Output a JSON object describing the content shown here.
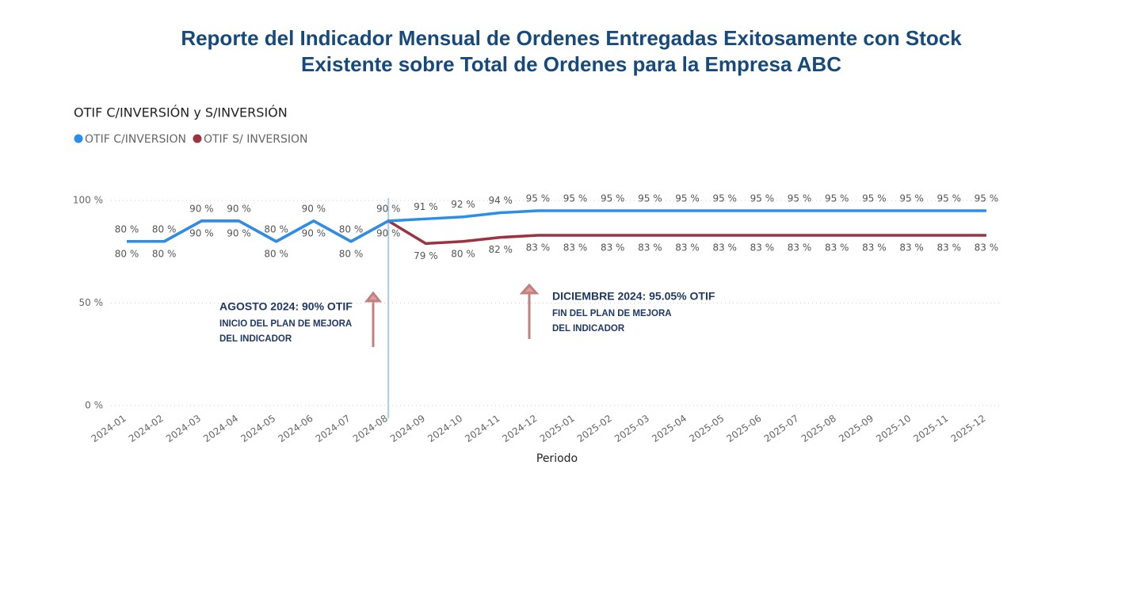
{
  "chart_data": {
    "type": "line",
    "title": [
      "Reporte del Indicador Mensual de Ordenes Entregadas Exitosamente con Stock",
      "Existente sobre Total de Ordenes para la Empresa ABC"
    ],
    "subtitle": "OTIF C/INVERSIÓN y S/INVERSIÓN",
    "x_label": "Periodo",
    "categories": [
      "2024-01",
      "2024-02",
      "2024-03",
      "2024-04",
      "2024-05",
      "2024-06",
      "2024-07",
      "2024-08",
      "2024-09",
      "2024-10",
      "2024-11",
      "2024-12",
      "2025-01",
      "2025-02",
      "2025-03",
      "2025-04",
      "2025-05",
      "2025-06",
      "2025-07",
      "2025-08",
      "2025-09",
      "2025-10",
      "2025-11",
      "2025-12"
    ],
    "series": [
      {
        "name": "OTIF C/INVERSION",
        "color": "#2b8ee8",
        "values": [
          80,
          80,
          90,
          90,
          80,
          90,
          80,
          90,
          91,
          92,
          94,
          95,
          95,
          95,
          95,
          95,
          95,
          95,
          95,
          95,
          95,
          95,
          95,
          95
        ],
        "value_labels": [
          "80 %",
          "80 %",
          "90 %",
          "90 %",
          "80 %",
          "90 %",
          "80 %",
          "90 %",
          "91 %",
          "92 %",
          "94 %",
          "95 %",
          "95 %",
          "95 %",
          "95 %",
          "95 %",
          "95 %",
          "95 %",
          "95 %",
          "95 %",
          "95 %",
          "95 %",
          "95 %",
          "95 %"
        ]
      },
      {
        "name": "OTIF S/ INVERSION",
        "color": "#9b3340",
        "values": [
          80,
          80,
          90,
          90,
          80,
          90,
          80,
          90,
          79,
          80,
          82,
          83,
          83,
          83,
          83,
          83,
          83,
          83,
          83,
          83,
          83,
          83,
          83,
          83
        ],
        "value_labels": [
          "80 %",
          "80 %",
          "90 %",
          "90 %",
          "80 %",
          "90 %",
          "80 %",
          "90 %",
          "79 %",
          "80 %",
          "82 %",
          "83 %",
          "83 %",
          "83 %",
          "83 %",
          "83 %",
          "83 %",
          "83 %",
          "83 %",
          "83 %",
          "83 %",
          "83 %",
          "83 %",
          "83 %"
        ]
      }
    ],
    "ylim": [
      0,
      100
    ],
    "yticks": [
      {
        "value": 0,
        "label": "0 %"
      },
      {
        "value": 50,
        "label": "50 %"
      },
      {
        "value": 100,
        "label": "100 %"
      }
    ],
    "grid": true,
    "reference_line": "2024-08",
    "annotations": [
      {
        "heading": "AGOSTO 2024: 90% OTIF",
        "lines": [
          "INICIO DEL PLAN DE MEJORA",
          "DEL INDICADOR"
        ]
      },
      {
        "heading": "DICIEMBRE 2024: 95.05% OTIF",
        "lines": [
          "FIN DEL PLAN DE MEJORA",
          "DEL INDICADOR"
        ]
      }
    ]
  }
}
